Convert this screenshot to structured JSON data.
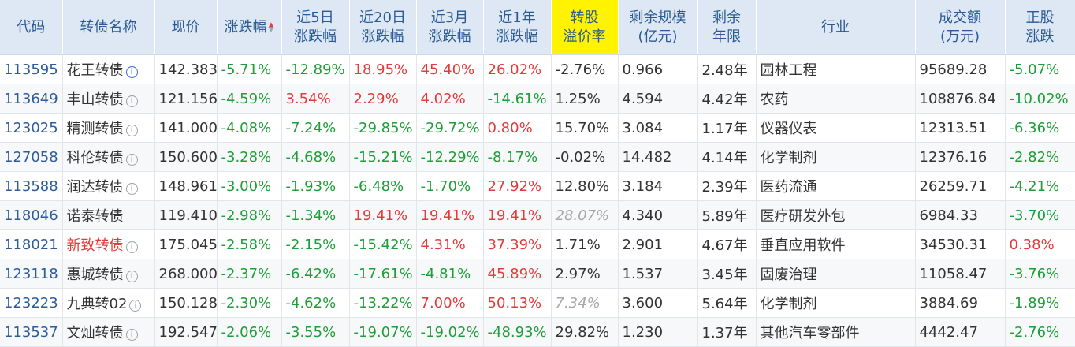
{
  "headers": {
    "code": "代码",
    "name": "转债名称",
    "price": "现价",
    "change": "涨跌幅",
    "chg5d_1": "近5日",
    "chg5d_2": "涨跌幅",
    "chg20d_1": "近20日",
    "chg20d_2": "涨跌幅",
    "chg3m_1": "近3月",
    "chg3m_2": "涨跌幅",
    "chg1y_1": "近1年",
    "chg1y_2": "涨跌幅",
    "premium_1": "转股",
    "premium_2": "溢价率",
    "scale_1": "剩余规模",
    "scale_2": "(亿元)",
    "years_1": "剩余",
    "years_2": "年限",
    "industry": "行业",
    "volume_1": "成交额",
    "volume_2": "(万元)",
    "stock_1": "正股",
    "stock_2": "涨跌"
  },
  "info_icon": "i",
  "sort_up": "▲",
  "sort_down": "▼",
  "rows": [
    {
      "code": "113595",
      "name": "花王转债",
      "price": "142.383",
      "change": "-5.71%",
      "chg5d": "-12.89%",
      "chg20d": "18.95%",
      "chg3m": "45.40%",
      "chg1y": "26.02%",
      "premium": "-2.76%",
      "scale": "0.966",
      "years": "2.48年",
      "industry": "园林工程",
      "volume": "95689.28",
      "stock": "-5.07%"
    },
    {
      "code": "113649",
      "name": "丰山转债",
      "price": "121.156",
      "change": "-4.59%",
      "chg5d": "3.54%",
      "chg20d": "2.29%",
      "chg3m": "4.02%",
      "chg1y": "-14.61%",
      "premium": "1.25%",
      "scale": "4.594",
      "years": "4.42年",
      "industry": "农药",
      "volume": "108876.84",
      "stock": "-10.02%"
    },
    {
      "code": "123025",
      "name": "精测转债",
      "price": "141.000",
      "change": "-4.08%",
      "chg5d": "-7.24%",
      "chg20d": "-29.85%",
      "chg3m": "-29.72%",
      "chg1y": "0.80%",
      "premium": "15.70%",
      "scale": "3.084",
      "years": "1.17年",
      "industry": "仪器仪表",
      "volume": "12313.51",
      "stock": "-6.36%"
    },
    {
      "code": "127058",
      "name": "科伦转债",
      "price": "150.600",
      "change": "-3.28%",
      "chg5d": "-4.68%",
      "chg20d": "-15.21%",
      "chg3m": "-12.29%",
      "chg1y": "-8.17%",
      "premium": "-0.02%",
      "scale": "14.482",
      "years": "4.14年",
      "industry": "化学制剂",
      "volume": "12376.16",
      "stock": "-2.82%"
    },
    {
      "code": "113588",
      "name": "润达转债",
      "price": "148.961",
      "change": "-3.00%",
      "chg5d": "-1.93%",
      "chg20d": "-6.48%",
      "chg3m": "-1.70%",
      "chg1y": "27.92%",
      "premium": "12.80%",
      "scale": "3.184",
      "years": "2.39年",
      "industry": "医药流通",
      "volume": "26259.71",
      "stock": "-4.21%"
    },
    {
      "code": "118046",
      "name": "诺泰转债",
      "price": "119.410",
      "change": "-2.98%",
      "chg5d": "-1.34%",
      "chg20d": "19.41%",
      "chg3m": "19.41%",
      "chg1y": "19.41%",
      "premium": "28.07%",
      "scale": "4.340",
      "years": "5.89年",
      "industry": "医疗研发外包",
      "volume": "6984.33",
      "stock": "-3.70%"
    },
    {
      "code": "118021",
      "name": "新致转债",
      "price": "175.045",
      "change": "-2.58%",
      "chg5d": "-2.15%",
      "chg20d": "-15.42%",
      "chg3m": "4.31%",
      "chg1y": "37.39%",
      "premium": "1.71%",
      "scale": "2.901",
      "years": "4.67年",
      "industry": "垂直应用软件",
      "volume": "34530.31",
      "stock": "0.38%"
    },
    {
      "code": "123118",
      "name": "惠城转债",
      "price": "268.000",
      "change": "-2.37%",
      "chg5d": "-6.42%",
      "chg20d": "-17.61%",
      "chg3m": "-4.81%",
      "chg1y": "45.89%",
      "premium": "2.97%",
      "scale": "1.537",
      "years": "3.45年",
      "industry": "固废治理",
      "volume": "11058.47",
      "stock": "-3.76%"
    },
    {
      "code": "123223",
      "name": "九典转02",
      "price": "150.128",
      "change": "-2.30%",
      "chg5d": "-4.62%",
      "chg20d": "-13.22%",
      "chg3m": "7.00%",
      "chg1y": "50.13%",
      "premium": "7.34%",
      "scale": "3.600",
      "years": "5.64年",
      "industry": "化学制剂",
      "volume": "3884.69",
      "stock": "-1.89%"
    },
    {
      "code": "113537",
      "name": "文灿转债",
      "price": "192.547",
      "change": "-2.06%",
      "chg5d": "-3.55%",
      "chg20d": "-19.07%",
      "chg3m": "-19.02%",
      "chg1y": "-48.93%",
      "premium": "29.82%",
      "scale": "1.230",
      "years": "1.37年",
      "industry": "其他汽车零部件",
      "volume": "4442.47",
      "stock": "-2.76%"
    }
  ]
}
